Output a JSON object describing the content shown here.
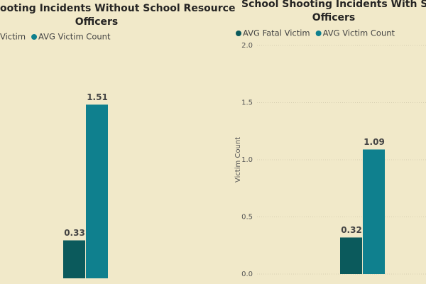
{
  "chart_data": [
    {
      "type": "bar",
      "title": [
        "ooting Incidents Without School Resource",
        "Officers"
      ],
      "series": [
        {
          "name": "Victim",
          "color": "#0b5a5c",
          "values": [
            0.33
          ]
        },
        {
          "name": "AVG Victim Count",
          "color": "#0f808e",
          "values": [
            1.51
          ]
        }
      ],
      "ylim": [
        0,
        2
      ]
    },
    {
      "type": "bar",
      "title": [
        "School Shooting Incidents With School R",
        "Officers"
      ],
      "y_label": "Victim Count",
      "series": [
        {
          "name": "AVG Fatal Victim",
          "color": "#0b5a5c",
          "values": [
            0.32
          ]
        },
        {
          "name": "AVG Victim Count",
          "color": "#0f808e",
          "values": [
            1.09
          ]
        }
      ],
      "ylim": [
        0,
        2
      ],
      "yticks": [
        {
          "value": 0,
          "label": "0.0"
        },
        0.5,
        {
          "value": 1,
          "label": "1.0"
        },
        1.5,
        {
          "value": 2,
          "label": "2.0"
        }
      ],
      "grid": true
    }
  ]
}
